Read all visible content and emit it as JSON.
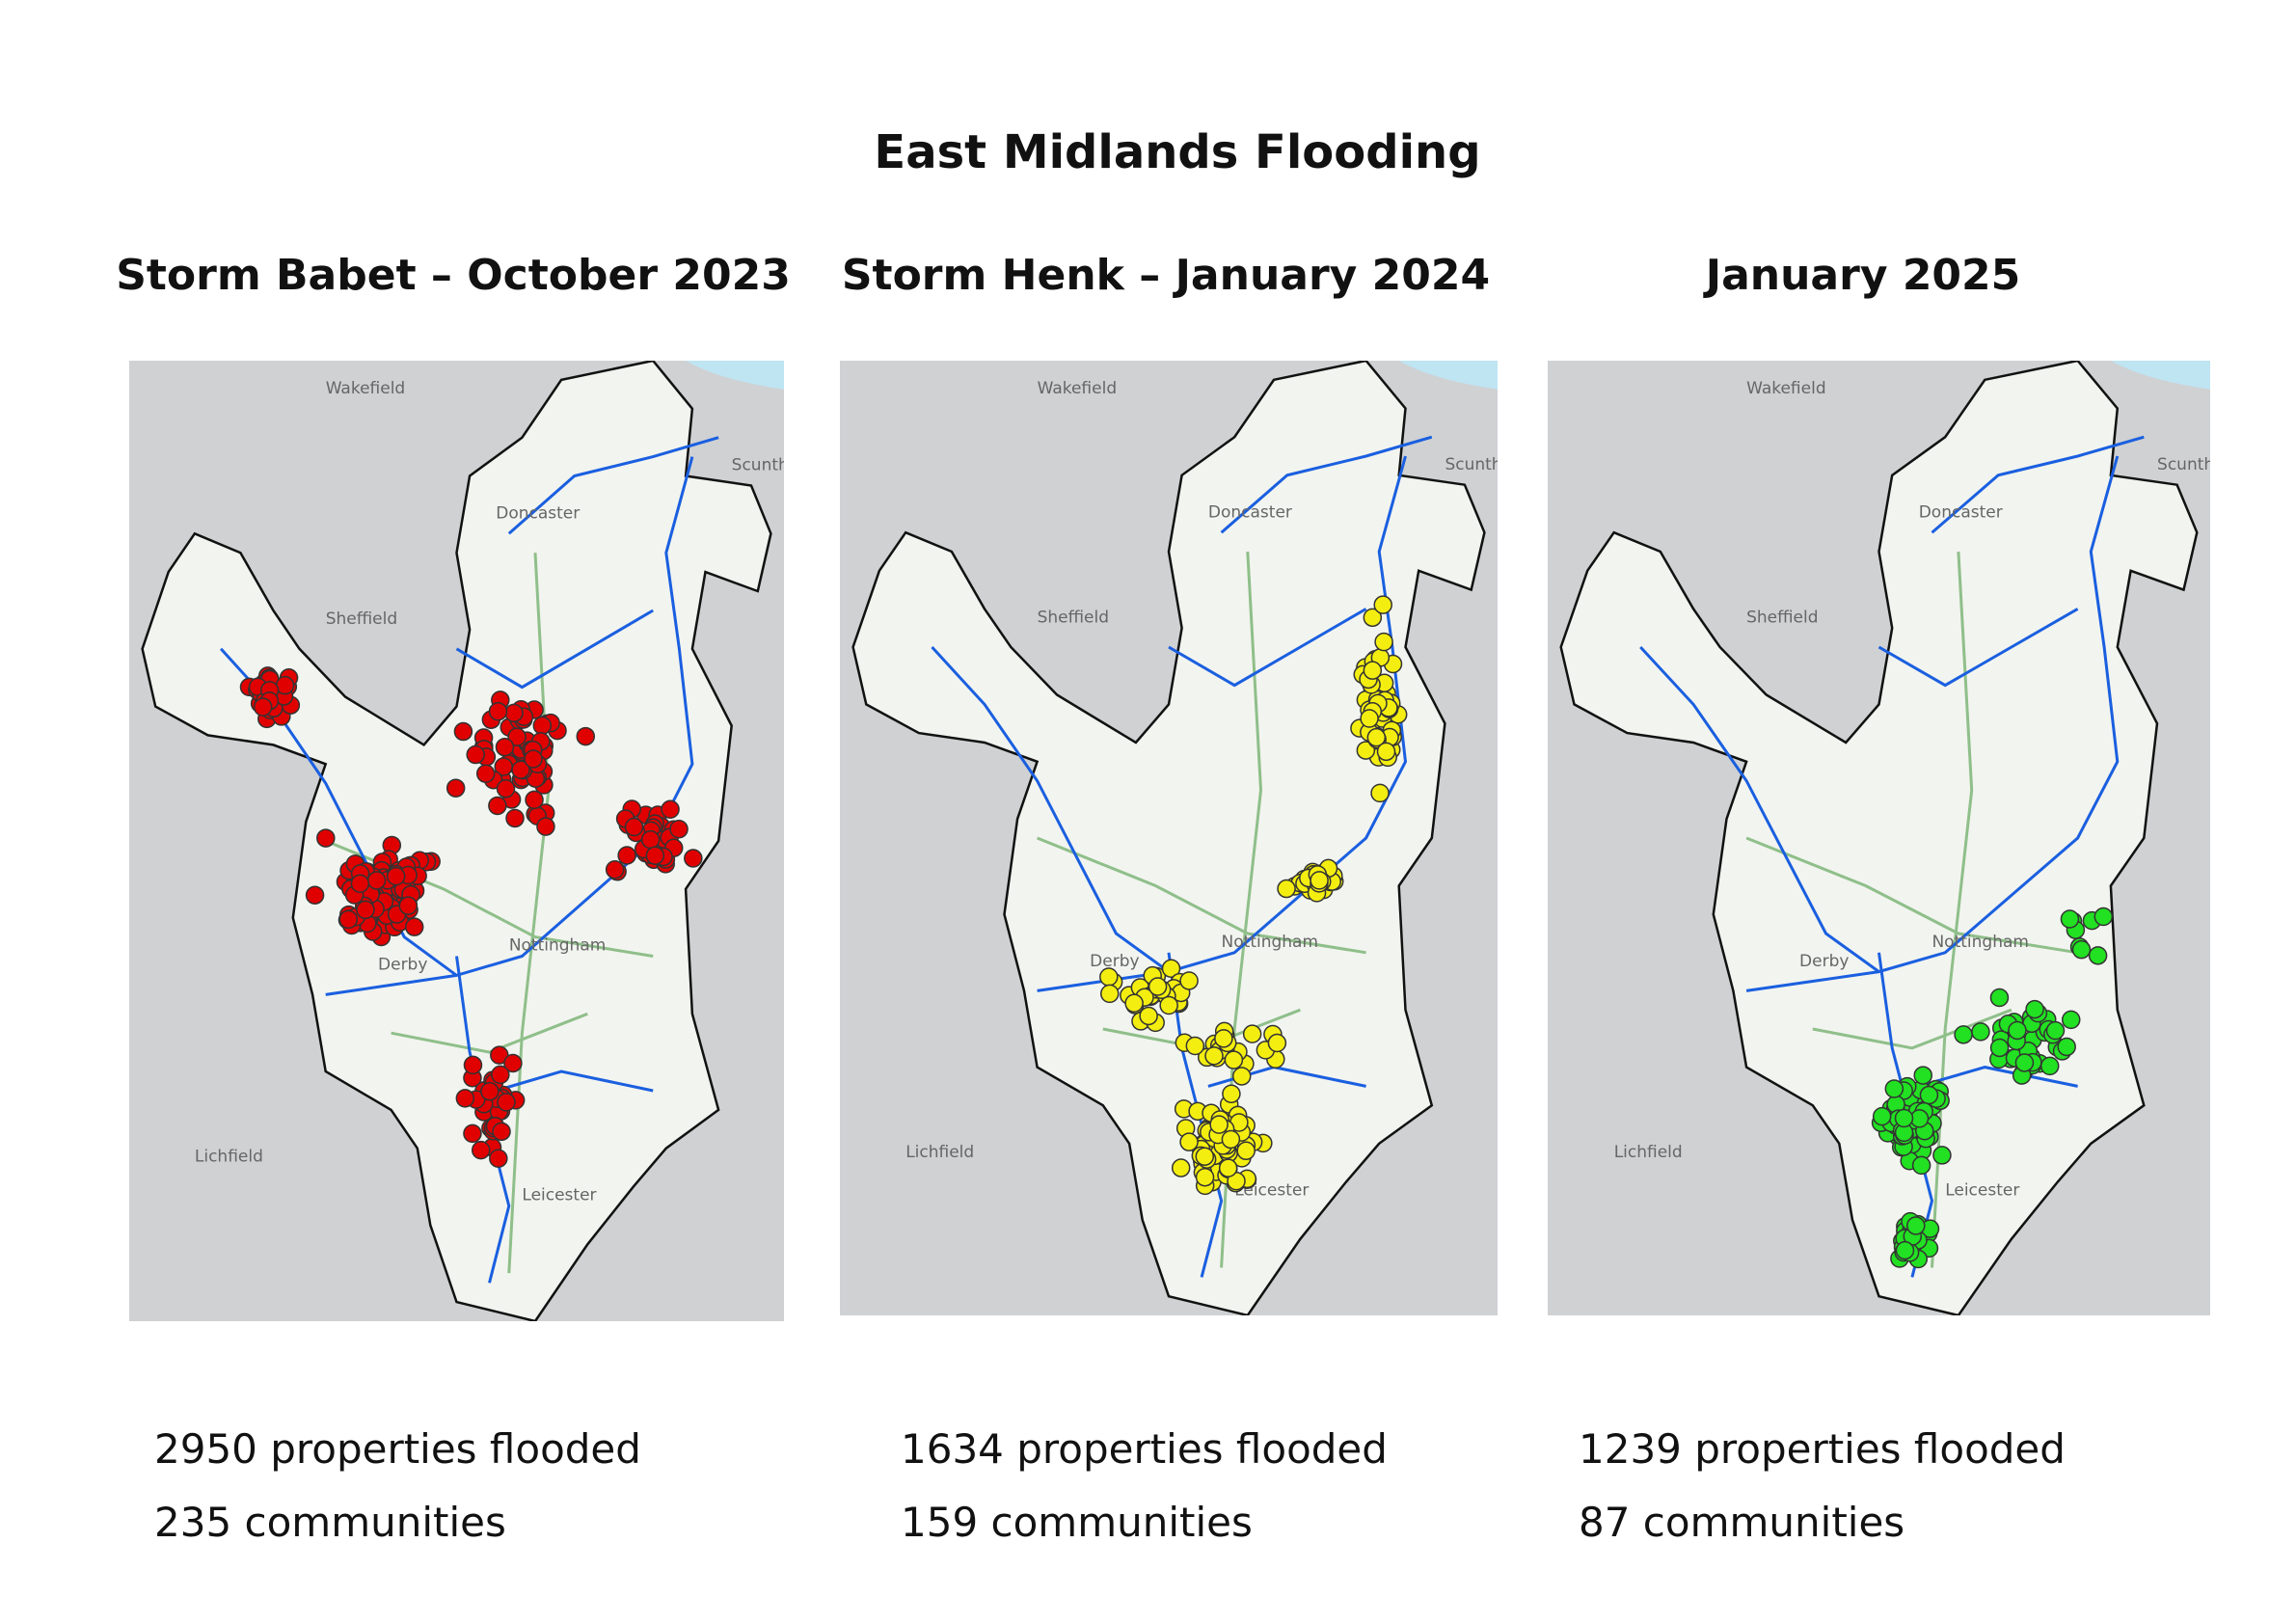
{
  "title": "East Midlands Flooding",
  "panels": [
    {
      "heading": "Storm Babet – October 2023",
      "dot_color": "#e00000",
      "properties": "2950 properties flooded",
      "communities": "235 communities"
    },
    {
      "heading": "Storm Henk – January 2024",
      "dot_color": "#f4ee10",
      "properties": "1634 properties flooded",
      "communities": "159 communities"
    },
    {
      "heading": "January 2025",
      "dot_color": "#22e022",
      "properties": "1239 properties flooded",
      "communities": "87 communities"
    }
  ],
  "map_labels": [
    "Wakefield",
    "Doncaster",
    "Scunthorpe",
    "Sheffield",
    "Nottingham",
    "Derby",
    "Lichfield",
    "Leicester"
  ]
}
